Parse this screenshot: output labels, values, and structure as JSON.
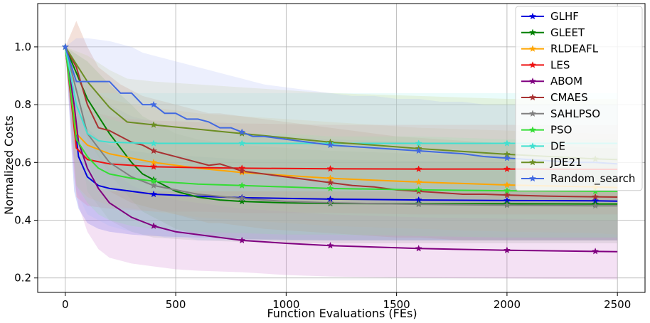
{
  "chart_data": {
    "type": "line",
    "title": "",
    "xlabel": "Function Evaluations (FEs)",
    "ylabel": "Normalized Costs",
    "xlim": [
      -125,
      2625
    ],
    "ylim": [
      0.15,
      1.15
    ],
    "xticks": [
      0,
      500,
      1000,
      1500,
      2000,
      2500
    ],
    "yticks": [
      0.2,
      0.4,
      0.6,
      0.8,
      1.0
    ],
    "xtick_labels": [
      "0",
      "500",
      "1000",
      "1500",
      "2000",
      "2500"
    ],
    "ytick_labels": [
      "0.2",
      "0.4",
      "0.6",
      "0.8",
      "1.0"
    ],
    "grid": true,
    "legend_position": "top-right",
    "series": [
      {
        "name": "GLHF",
        "color": "#0000dd",
        "shade_color": "#4455ee",
        "x": [
          0,
          40,
          60,
          100,
          150,
          200,
          300,
          400,
          600,
          800,
          1200,
          1600,
          2000,
          2400,
          2500
        ],
        "y": [
          1.0,
          0.75,
          0.62,
          0.55,
          0.52,
          0.51,
          0.5,
          0.49,
          0.483,
          0.478,
          0.473,
          0.47,
          0.468,
          0.467,
          0.466
        ],
        "upper": [
          1.0,
          0.84,
          0.78,
          0.72,
          0.68,
          0.66,
          0.64,
          0.63,
          0.62,
          0.61,
          0.61,
          0.605,
          0.6,
          0.6,
          0.6
        ],
        "lower": [
          1.0,
          0.5,
          0.44,
          0.39,
          0.37,
          0.36,
          0.35,
          0.345,
          0.34,
          0.335,
          0.33,
          0.33,
          0.33,
          0.33,
          0.33
        ]
      },
      {
        "name": "GLEET",
        "color": "#008000",
        "shade_color": "#66aa55",
        "x": [
          0,
          100,
          200,
          300,
          350,
          400,
          450,
          500,
          600,
          700,
          800,
          1000,
          1200,
          1600,
          2000,
          2400,
          2500
        ],
        "y": [
          1.0,
          0.82,
          0.7,
          0.6,
          0.56,
          0.54,
          0.52,
          0.5,
          0.48,
          0.47,
          0.465,
          0.46,
          0.458,
          0.457,
          0.457,
          0.456,
          0.456
        ],
        "upper": [
          1.0,
          0.95,
          0.87,
          0.8,
          0.76,
          0.74,
          0.72,
          0.7,
          0.68,
          0.67,
          0.66,
          0.65,
          0.64,
          0.63,
          0.62,
          0.62,
          0.62
        ],
        "lower": [
          1.0,
          0.68,
          0.56,
          0.47,
          0.43,
          0.41,
          0.39,
          0.37,
          0.35,
          0.34,
          0.335,
          0.33,
          0.33,
          0.33,
          0.33,
          0.33,
          0.33
        ]
      },
      {
        "name": "RLDEAFL",
        "color": "#ffa500",
        "shade_color": "#f0c070",
        "x": [
          0,
          50,
          100,
          200,
          300,
          400,
          600,
          800,
          1000,
          1200,
          1600,
          2000,
          2400,
          2500
        ],
        "y": [
          1.0,
          0.7,
          0.66,
          0.63,
          0.615,
          0.6,
          0.58,
          0.565,
          0.555,
          0.545,
          0.532,
          0.522,
          0.515,
          0.513
        ],
        "upper": [
          1.0,
          0.9,
          0.86,
          0.82,
          0.8,
          0.79,
          0.77,
          0.76,
          0.75,
          0.74,
          0.72,
          0.71,
          0.7,
          0.7
        ],
        "lower": [
          1.0,
          0.52,
          0.48,
          0.45,
          0.44,
          0.43,
          0.41,
          0.4,
          0.39,
          0.38,
          0.37,
          0.36,
          0.355,
          0.35
        ]
      },
      {
        "name": "LES",
        "color": "#ee1111",
        "shade_color": "#ee7777",
        "x": [
          0,
          50,
          100,
          200,
          300,
          400,
          600,
          800,
          1200,
          1600,
          2000,
          2400,
          2500
        ],
        "y": [
          1.0,
          0.65,
          0.61,
          0.595,
          0.59,
          0.585,
          0.582,
          0.58,
          0.578,
          0.577,
          0.577,
          0.576,
          0.576
        ],
        "upper": [
          1.0,
          0.82,
          0.78,
          0.76,
          0.75,
          0.745,
          0.74,
          0.735,
          0.73,
          0.73,
          0.73,
          0.73,
          0.73
        ],
        "lower": [
          1.0,
          0.48,
          0.45,
          0.44,
          0.435,
          0.43,
          0.43,
          0.425,
          0.425,
          0.42,
          0.42,
          0.42,
          0.42
        ],
        "markers_x": [
          400,
          800,
          1200,
          1600,
          2000
        ]
      },
      {
        "name": "ABOM",
        "color": "#800080",
        "shade_color": "#cc77cc",
        "x": [
          0,
          40,
          60,
          100,
          150,
          200,
          300,
          400,
          500,
          600,
          800,
          1000,
          1200,
          1600,
          2000,
          2400,
          2500
        ],
        "y": [
          1.0,
          0.8,
          0.67,
          0.58,
          0.51,
          0.46,
          0.41,
          0.38,
          0.36,
          0.35,
          0.33,
          0.32,
          0.312,
          0.302,
          0.296,
          0.292,
          0.291
        ],
        "upper": [
          1.0,
          0.9,
          0.8,
          0.7,
          0.63,
          0.58,
          0.52,
          0.49,
          0.47,
          0.46,
          0.44,
          0.43,
          0.42,
          0.41,
          0.405,
          0.4,
          0.4
        ],
        "lower": [
          1.0,
          0.55,
          0.45,
          0.36,
          0.3,
          0.27,
          0.25,
          0.24,
          0.23,
          0.225,
          0.22,
          0.21,
          0.205,
          0.2,
          0.198,
          0.196,
          0.195
        ]
      },
      {
        "name": "CMAES",
        "color": "#a83232",
        "shade_color": "#cc7755",
        "x": [
          0,
          50,
          100,
          150,
          200,
          250,
          300,
          350,
          400,
          450,
          500,
          550,
          600,
          650,
          700,
          800,
          900,
          1000,
          1100,
          1200,
          1300,
          1400,
          1500,
          1600,
          1700,
          1800,
          1900,
          2000,
          2100,
          2200,
          2300,
          2400,
          2500
        ],
        "y": [
          1.0,
          0.93,
          0.8,
          0.72,
          0.71,
          0.69,
          0.67,
          0.66,
          0.64,
          0.63,
          0.62,
          0.61,
          0.6,
          0.59,
          0.595,
          0.57,
          0.56,
          0.55,
          0.54,
          0.53,
          0.52,
          0.515,
          0.505,
          0.5,
          0.495,
          0.49,
          0.49,
          0.487,
          0.485,
          0.483,
          0.482,
          0.481,
          0.48
        ],
        "upper": [
          1.0,
          1.09,
          1.0,
          0.93,
          0.9,
          0.87,
          0.85,
          0.83,
          0.82,
          0.81,
          0.8,
          0.79,
          0.78,
          0.77,
          0.77,
          0.76,
          0.75,
          0.74,
          0.73,
          0.72,
          0.71,
          0.7,
          0.69,
          0.685,
          0.68,
          0.675,
          0.67,
          0.665,
          0.66,
          0.66,
          0.655,
          0.65,
          0.65
        ],
        "lower": [
          1.0,
          0.75,
          0.6,
          0.52,
          0.5,
          0.48,
          0.46,
          0.45,
          0.44,
          0.43,
          0.42,
          0.41,
          0.4,
          0.39,
          0.39,
          0.38,
          0.37,
          0.365,
          0.36,
          0.355,
          0.35,
          0.345,
          0.34,
          0.34,
          0.335,
          0.33,
          0.33,
          0.33,
          0.33,
          0.33,
          0.33,
          0.33,
          0.33
        ]
      },
      {
        "name": "SAHLPSO",
        "color": "#808080",
        "shade_color": "#aaaaaa",
        "x": [
          0,
          100,
          200,
          300,
          400,
          600,
          800,
          1000,
          1200,
          1600,
          2000,
          2400,
          2500
        ],
        "y": [
          1.0,
          0.7,
          0.6,
          0.55,
          0.52,
          0.49,
          0.475,
          0.465,
          0.46,
          0.455,
          0.452,
          0.45,
          0.45
        ],
        "upper": [
          1.0,
          0.88,
          0.8,
          0.76,
          0.74,
          0.71,
          0.7,
          0.69,
          0.68,
          0.67,
          0.66,
          0.66,
          0.66
        ],
        "lower": [
          1.0,
          0.5,
          0.4,
          0.36,
          0.34,
          0.33,
          0.325,
          0.32,
          0.32,
          0.32,
          0.32,
          0.32,
          0.32
        ]
      },
      {
        "name": "PSO",
        "color": "#33dd33",
        "shade_color": "#88ee88",
        "x": [
          0,
          50,
          100,
          150,
          200,
          300,
          400,
          600,
          800,
          1000,
          1200,
          1600,
          2000,
          2400,
          2500
        ],
        "y": [
          1.0,
          0.68,
          0.62,
          0.58,
          0.56,
          0.545,
          0.535,
          0.525,
          0.52,
          0.515,
          0.51,
          0.505,
          0.502,
          0.5,
          0.5
        ],
        "upper": [
          1.0,
          0.86,
          0.8,
          0.77,
          0.75,
          0.73,
          0.72,
          0.71,
          0.7,
          0.7,
          0.69,
          0.69,
          0.68,
          0.68,
          0.68
        ],
        "lower": [
          1.0,
          0.52,
          0.46,
          0.42,
          0.4,
          0.38,
          0.37,
          0.36,
          0.355,
          0.35,
          0.35,
          0.345,
          0.34,
          0.34,
          0.34
        ]
      },
      {
        "name": "DE",
        "color": "#40e0d0",
        "shade_color": "#9ff0ec",
        "x": [
          0,
          50,
          100,
          150,
          200,
          300,
          400,
          600,
          800,
          1200,
          1600,
          2000,
          2400,
          2500
        ],
        "y": [
          1.0,
          0.8,
          0.7,
          0.675,
          0.67,
          0.668,
          0.666,
          0.666,
          0.666,
          0.666,
          0.666,
          0.666,
          0.666,
          0.666
        ],
        "upper": [
          1.0,
          0.92,
          0.86,
          0.84,
          0.84,
          0.84,
          0.84,
          0.84,
          0.84,
          0.84,
          0.84,
          0.84,
          0.84,
          0.84
        ],
        "lower": [
          1.0,
          0.65,
          0.54,
          0.51,
          0.5,
          0.5,
          0.5,
          0.5,
          0.5,
          0.5,
          0.5,
          0.5,
          0.5,
          0.5
        ],
        "markers_x": [
          400,
          800,
          1200,
          1600,
          2000
        ]
      },
      {
        "name": "JDE21",
        "color": "#6b8e23",
        "shade_color": "#c8d080",
        "x": [
          0,
          100,
          200,
          280,
          400,
          600,
          800,
          1000,
          1200,
          1400,
          1600,
          1800,
          2000,
          2200,
          2400,
          2500
        ],
        "y": [
          1.0,
          0.88,
          0.79,
          0.74,
          0.73,
          0.715,
          0.7,
          0.685,
          0.67,
          0.66,
          0.648,
          0.638,
          0.628,
          0.62,
          0.612,
          0.61
        ],
        "upper": [
          1.0,
          0.97,
          0.92,
          0.89,
          0.88,
          0.87,
          0.86,
          0.85,
          0.84,
          0.835,
          0.83,
          0.825,
          0.82,
          0.82,
          0.82,
          0.82
        ],
        "lower": [
          1.0,
          0.78,
          0.68,
          0.62,
          0.6,
          0.58,
          0.56,
          0.55,
          0.54,
          0.53,
          0.52,
          0.51,
          0.5,
          0.49,
          0.48,
          0.48
        ],
        "markers_x": [
          400,
          800,
          1200,
          1600,
          2000,
          2400
        ]
      },
      {
        "name": "Random_search",
        "color": "#4169e1",
        "shade_color": "#a8b8f5",
        "x": [
          0,
          50,
          100,
          200,
          250,
          300,
          350,
          400,
          450,
          500,
          550,
          600,
          650,
          700,
          750,
          800,
          850,
          900,
          1000,
          1100,
          1200,
          1300,
          1400,
          1500,
          1600,
          1700,
          1800,
          1900,
          2000,
          2100,
          2200,
          2300,
          2400,
          2500
        ],
        "y": [
          1.0,
          0.88,
          0.88,
          0.88,
          0.84,
          0.84,
          0.8,
          0.8,
          0.77,
          0.77,
          0.75,
          0.75,
          0.74,
          0.72,
          0.72,
          0.705,
          0.69,
          0.69,
          0.68,
          0.67,
          0.66,
          0.655,
          0.65,
          0.645,
          0.64,
          0.635,
          0.63,
          0.62,
          0.615,
          0.61,
          0.605,
          0.6,
          0.6,
          0.595
        ],
        "upper": [
          1.0,
          1.03,
          1.03,
          1.02,
          1.01,
          1.0,
          0.98,
          0.97,
          0.96,
          0.95,
          0.94,
          0.93,
          0.92,
          0.91,
          0.9,
          0.89,
          0.88,
          0.87,
          0.86,
          0.85,
          0.84,
          0.83,
          0.83,
          0.82,
          0.82,
          0.81,
          0.81,
          0.8,
          0.8,
          0.8,
          0.8,
          0.8,
          0.8,
          0.8
        ],
        "lower": [
          1.0,
          0.5,
          0.42,
          0.38,
          0.37,
          0.36,
          0.35,
          0.35,
          0.34,
          0.34,
          0.34,
          0.33,
          0.33,
          0.33,
          0.33,
          0.33,
          0.33,
          0.33,
          0.33,
          0.33,
          0.33,
          0.33,
          0.33,
          0.33,
          0.33,
          0.33,
          0.33,
          0.33,
          0.33,
          0.33,
          0.33,
          0.33,
          0.33,
          0.33
        ],
        "markers_x": [
          400,
          800,
          1200,
          1600,
          2000
        ]
      }
    ]
  }
}
